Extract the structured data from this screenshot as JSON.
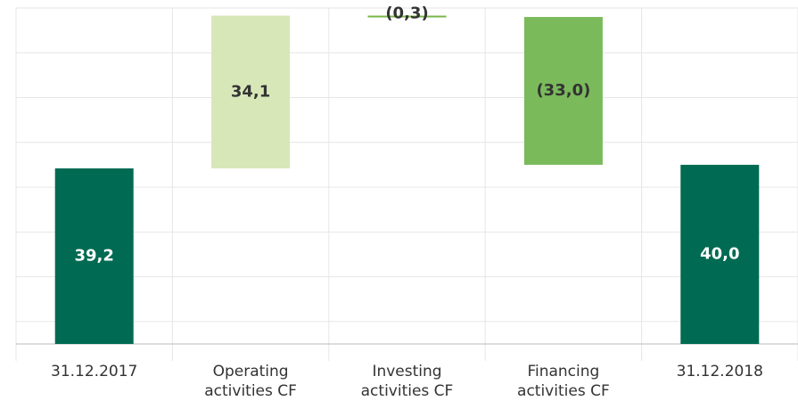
{
  "chart_data": {
    "type": "waterfall",
    "categories": [
      "31.12.2017",
      "Operating activities CF",
      "Investing activities CF",
      "Financing activities CF",
      "31.12.2018"
    ],
    "values": [
      39.2,
      34.1,
      -0.3,
      -33.0,
      40.0
    ],
    "value_labels": [
      "39,2",
      "34,1",
      "(0,3)",
      "(33,0)",
      "40,0"
    ],
    "is_total": [
      true,
      false,
      false,
      false,
      true
    ],
    "colors": [
      "#006b52",
      "#d7e7b8",
      "#7ab648",
      "#7aba5b",
      "#006b52"
    ],
    "ylim": [
      0,
      75
    ],
    "yticks": [
      5,
      15,
      25,
      35,
      45,
      55,
      65,
      75
    ],
    "grid": true
  }
}
